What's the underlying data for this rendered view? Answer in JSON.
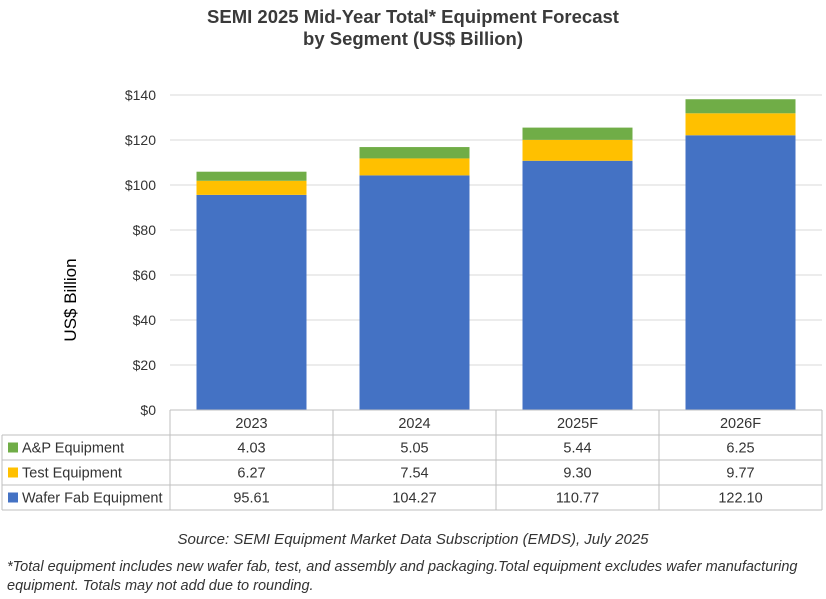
{
  "chart_data": {
    "type": "bar",
    "stacked": true,
    "title_line1": "SEMI 2025 Mid-Year Total* Equipment Forecast",
    "title_line2": "by Segment (US$ Billion)",
    "ylabel": "US$ Billion",
    "ylim": [
      0,
      140
    ],
    "yticks": [
      0,
      20,
      40,
      60,
      80,
      100,
      120,
      140
    ],
    "ytick_labels": [
      "$0",
      "$20",
      "$40",
      "$60",
      "$80",
      "$100",
      "$120",
      "$140"
    ],
    "grid": true,
    "categories": [
      "2023",
      "2024",
      "2025F",
      "2026F"
    ],
    "series": [
      {
        "name": "Wafer Fab Equipment",
        "color": "#4472c4",
        "values": [
          95.61,
          104.27,
          110.77,
          122.1
        ],
        "labels": [
          "95.61",
          "104.27",
          "110.77",
          "122.10"
        ]
      },
      {
        "name": "Test Equipment",
        "color": "#ffc000",
        "values": [
          6.27,
          7.54,
          9.3,
          9.77
        ],
        "labels": [
          "6.27",
          "7.54",
          "9.30",
          "9.77"
        ]
      },
      {
        "name": "A&P Equipment",
        "color": "#70ad47",
        "values": [
          4.03,
          5.05,
          5.44,
          6.25
        ],
        "labels": [
          "4.03",
          "5.05",
          "5.44",
          "6.25"
        ]
      }
    ],
    "table_row_order": [
      "A&P Equipment",
      "Test Equipment",
      "Wafer Fab Equipment"
    ]
  },
  "source": "Source: SEMI Equipment Market Data Subscription (EMDS), July 2025",
  "footnote": "*Total equipment includes new wafer fab, test, and assembly and packaging.Total equipment excludes wafer manufacturing equipment. Totals may not add due to rounding."
}
